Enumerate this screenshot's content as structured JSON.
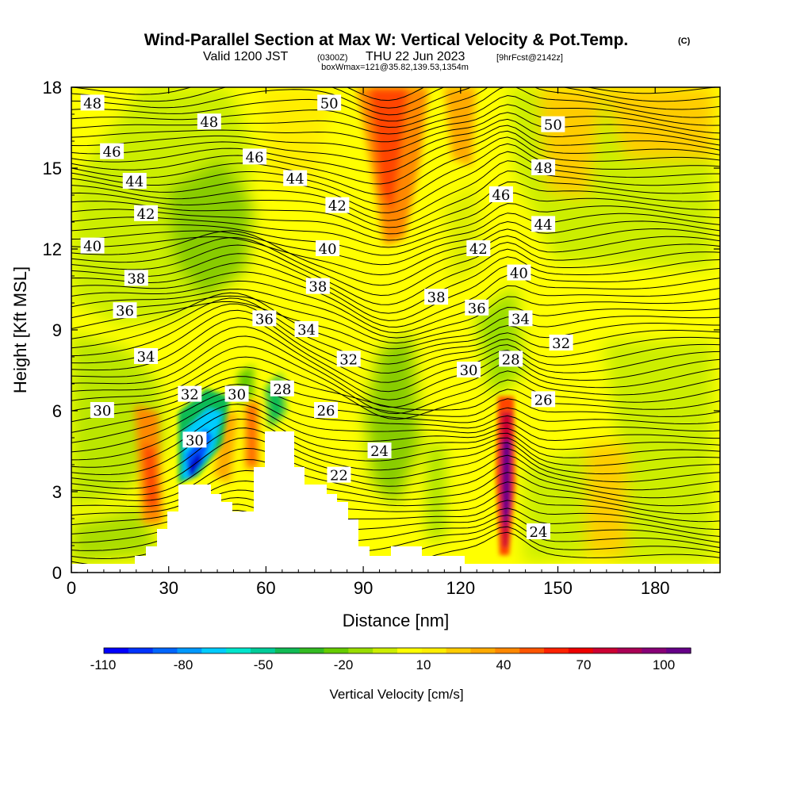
{
  "header": {
    "title": "Wind-Parallel Section at Max W: Vertical Velocity & Pot.Temp.",
    "copyright": "(C)",
    "valid_prefix": "Valid 1200 JST",
    "valid_utc": "(0300Z)",
    "valid_date": "THU 22 Jun 2023",
    "forecast": "[9hrFcst@2142z]",
    "boxwmax": "boxWmax=121@35.82,139.53,1354m"
  },
  "chart_data": {
    "type": "heatmap",
    "title": "Wind-Parallel Section at Max W: Vertical Velocity & Pot.Temp.",
    "xlabel": "Distance [nm]",
    "ylabel": "Height [Kft MSL]",
    "xlim": [
      0,
      200
    ],
    "ylim": [
      0,
      18
    ],
    "x_ticks": [
      "0",
      "30",
      "60",
      "90",
      "120",
      "150",
      "180"
    ],
    "y_ticks": [
      "0",
      "3",
      "6",
      "9",
      "12",
      "15",
      "18"
    ],
    "colorbar": {
      "title": "Vertical Velocity [cm/s]",
      "labels": [
        "-110",
        "-80",
        "-50",
        "-20",
        "10",
        "40",
        "70",
        "100"
      ],
      "colors": [
        "#0000ff",
        "#0033ff",
        "#0066ff",
        "#0099ff",
        "#00ccff",
        "#00e5cc",
        "#00cc99",
        "#11bb55",
        "#33bb22",
        "#66cc00",
        "#99dd00",
        "#ccee00",
        "#ffff00",
        "#ffee00",
        "#ffcc00",
        "#ffaa00",
        "#ff8800",
        "#ff5500",
        "#ff2200",
        "#ee0000",
        "#cc0033",
        "#aa0055",
        "#880077",
        "#660088"
      ]
    },
    "contour_labels": [
      {
        "text": "48",
        "x": 6.5,
        "y": 17.4
      },
      {
        "text": "48",
        "x": 42.5,
        "y": 16.7
      },
      {
        "text": "50",
        "x": 79.5,
        "y": 17.4
      },
      {
        "text": "50",
        "x": 148.5,
        "y": 16.6
      },
      {
        "text": "46",
        "x": 12.5,
        "y": 15.6
      },
      {
        "text": "46",
        "x": 56.5,
        "y": 15.4
      },
      {
        "text": "48",
        "x": 145.5,
        "y": 15.0
      },
      {
        "text": "44",
        "x": 19.5,
        "y": 14.5
      },
      {
        "text": "44",
        "x": 69.0,
        "y": 14.6
      },
      {
        "text": "46",
        "x": 132.5,
        "y": 14.0
      },
      {
        "text": "42",
        "x": 23.0,
        "y": 13.3
      },
      {
        "text": "42",
        "x": 82.0,
        "y": 13.6
      },
      {
        "text": "44",
        "x": 145.5,
        "y": 12.9
      },
      {
        "text": "40",
        "x": 6.5,
        "y": 12.1
      },
      {
        "text": "40",
        "x": 79.0,
        "y": 12.0
      },
      {
        "text": "42",
        "x": 125.5,
        "y": 12.0
      },
      {
        "text": "38",
        "x": 20.0,
        "y": 10.9
      },
      {
        "text": "38",
        "x": 76.0,
        "y": 10.6
      },
      {
        "text": "40",
        "x": 138.0,
        "y": 11.1
      },
      {
        "text": "38",
        "x": 112.5,
        "y": 10.2
      },
      {
        "text": "36",
        "x": 16.5,
        "y": 9.7
      },
      {
        "text": "36",
        "x": 59.5,
        "y": 9.4
      },
      {
        "text": "36",
        "x": 125.0,
        "y": 9.8
      },
      {
        "text": "34",
        "x": 72.5,
        "y": 9.0
      },
      {
        "text": "34",
        "x": 138.5,
        "y": 9.4
      },
      {
        "text": "32",
        "x": 151.0,
        "y": 8.5
      },
      {
        "text": "34",
        "x": 23.0,
        "y": 8.0
      },
      {
        "text": "32",
        "x": 85.5,
        "y": 7.9
      },
      {
        "text": "28",
        "x": 135.5,
        "y": 7.9
      },
      {
        "text": "30",
        "x": 122.5,
        "y": 7.5
      },
      {
        "text": "32",
        "x": 36.5,
        "y": 6.6
      },
      {
        "text": "30",
        "x": 51.0,
        "y": 6.6
      },
      {
        "text": "28",
        "x": 65.0,
        "y": 6.8
      },
      {
        "text": "26",
        "x": 145.5,
        "y": 6.4
      },
      {
        "text": "30",
        "x": 9.5,
        "y": 6.0
      },
      {
        "text": "26",
        "x": 78.5,
        "y": 6.0
      },
      {
        "text": "30",
        "x": 38.0,
        "y": 4.9
      },
      {
        "text": "24",
        "x": 95.0,
        "y": 4.5
      },
      {
        "text": "22",
        "x": 82.5,
        "y": 3.6
      },
      {
        "text": "24",
        "x": 144.0,
        "y": 1.5
      }
    ]
  }
}
